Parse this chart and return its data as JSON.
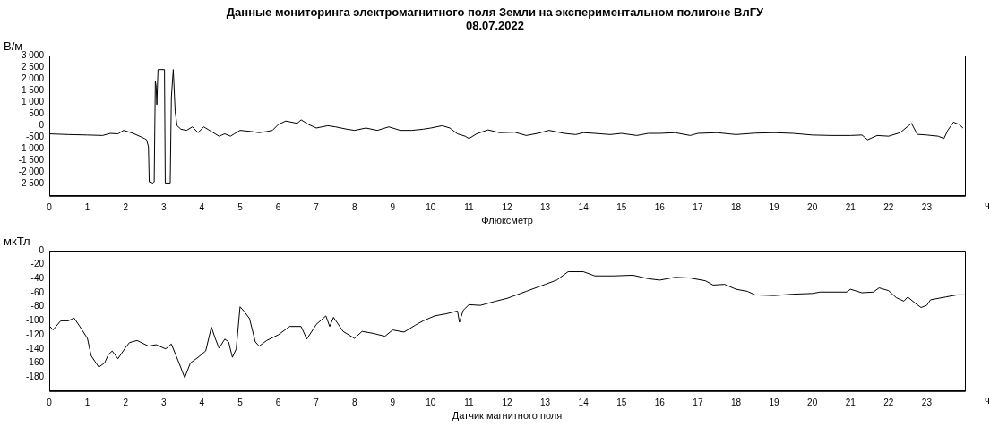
{
  "chart_data": [
    {
      "type": "line",
      "title": "Данные мониторинга электромагнитного поля Земли на экспериментальном полигоне ВлГУ",
      "subtitle": "08.07.2022",
      "ylabel": "В/м",
      "xlabel": "Флюксметр",
      "annotations": [
        "ч"
      ],
      "marker": "none",
      "xlim": [
        0,
        24
      ],
      "xticks": [
        0,
        1,
        2,
        3,
        4,
        5,
        6,
        7,
        8,
        9,
        10,
        11,
        12,
        13,
        14,
        15,
        16,
        17,
        18,
        19,
        20,
        21,
        22,
        23
      ],
      "ylim": [
        -3000,
        3000
      ],
      "yticks": [
        {
          "value": 3000,
          "label": "3 000"
        },
        {
          "value": 2500,
          "label": "2 500"
        },
        {
          "value": 2000,
          "label": "2 000"
        },
        {
          "value": 1500,
          "label": "1 500"
        },
        {
          "value": 1000,
          "label": "1 000"
        },
        500,
        0,
        -500,
        {
          "value": -1000,
          "label": "-1 000"
        },
        {
          "value": -1500,
          "label": "-1 500"
        },
        {
          "value": -2000,
          "label": "-2 000"
        },
        {
          "value": -2500,
          "label": "-2 500"
        }
      ],
      "series": [
        {
          "color": "#000000",
          "x": [
            0,
            0.5,
            1,
            1.4,
            1.6,
            1.8,
            1.95,
            2.2,
            2.5,
            2.55,
            2.6,
            2.62,
            2.72,
            2.75,
            2.78,
            2.8,
            2.82,
            2.85,
            3.02,
            3.04,
            3.17,
            3.2,
            3.25,
            3.3,
            3.35,
            3.45,
            3.6,
            3.75,
            3.9,
            4.05,
            4.2,
            4.45,
            4.6,
            4.75,
            4.85,
            5,
            5.3,
            5.5,
            5.7,
            5.85,
            6,
            6.2,
            6.5,
            6.6,
            6.8,
            7,
            7.3,
            7.5,
            7.8,
            8,
            8.3,
            8.6,
            8.9,
            9.2,
            9.5,
            9.8,
            10,
            10.3,
            10.5,
            10.7,
            10.9,
            11,
            11.2,
            11.5,
            11.8,
            12.2,
            12.5,
            12.8,
            13.1,
            13.5,
            13.8,
            14,
            14.3,
            14.7,
            15,
            15.4,
            15.7,
            16,
            16.4,
            16.8,
            17,
            17.5,
            18,
            18.5,
            19,
            19.5,
            20,
            20.5,
            21,
            21.3,
            21.45,
            21.7,
            22,
            22.3,
            22.6,
            22.75,
            23,
            23.3,
            23.45,
            23.55,
            23.7,
            23.85,
            23.95
          ],
          "values": [
            -350,
            -380,
            -400,
            -420,
            -330,
            -350,
            -200,
            -330,
            -550,
            -600,
            -900,
            -2400,
            -2450,
            -2400,
            1900,
            1700,
            900,
            2400,
            2400,
            -2450,
            -2450,
            1200,
            2400,
            600,
            0,
            -150,
            -200,
            -50,
            -300,
            -50,
            -200,
            -450,
            -350,
            -450,
            -350,
            -200,
            -250,
            -300,
            -250,
            -200,
            50,
            200,
            100,
            250,
            50,
            -100,
            0,
            -50,
            -150,
            -200,
            -100,
            -200,
            -50,
            -200,
            -200,
            -150,
            -100,
            0,
            -100,
            -350,
            -450,
            -550,
            -350,
            -180,
            -300,
            -280,
            -420,
            -330,
            -200,
            -330,
            -380,
            -300,
            -330,
            -380,
            -330,
            -420,
            -330,
            -330,
            -300,
            -420,
            -330,
            -300,
            -380,
            -320,
            -300,
            -330,
            -400,
            -420,
            -420,
            -400,
            -600,
            -420,
            -450,
            -300,
            100,
            -370,
            -400,
            -450,
            -550,
            -200,
            150,
            50,
            -100
          ]
        }
      ]
    },
    {
      "type": "line",
      "ylabel": "мкТл",
      "xlabel": "Датчик магнитного поля",
      "annotations": [
        "ч"
      ],
      "marker": "none",
      "xlim": [
        0,
        24
      ],
      "xticks": [
        0,
        1,
        2,
        3,
        4,
        5,
        6,
        7,
        8,
        9,
        10,
        11,
        12,
        13,
        14,
        15,
        16,
        17,
        18,
        19,
        20,
        21,
        22,
        23
      ],
      "ylim": [
        -200,
        0
      ],
      "yticks": [
        0,
        -20,
        -40,
        -60,
        -80,
        -100,
        -120,
        -140,
        -160,
        -180
      ],
      "series": [
        {
          "color": "#000000",
          "x": [
            0,
            0.1,
            0.3,
            0.5,
            0.65,
            0.8,
            1,
            1.1,
            1.3,
            1.45,
            1.55,
            1.65,
            1.8,
            2,
            2.1,
            2.3,
            2.6,
            2.8,
            3.05,
            3.2,
            3.4,
            3.55,
            3.7,
            3.9,
            4.1,
            4.25,
            4.35,
            4.45,
            4.6,
            4.7,
            4.8,
            4.9,
            5,
            5.1,
            5.25,
            5.4,
            5.5,
            5.7,
            6,
            6.3,
            6.6,
            6.75,
            7,
            7.25,
            7.35,
            7.45,
            7.7,
            8,
            8.2,
            8.5,
            8.8,
            9,
            9.3,
            9.6,
            9.8,
            10.1,
            10.4,
            10.7,
            10.75,
            10.85,
            11,
            11.3,
            11.5,
            11.7,
            12,
            12.5,
            13,
            13.3,
            13.6,
            14,
            14.3,
            14.8,
            15.3,
            15.7,
            16,
            16.4,
            16.8,
            17.2,
            17.4,
            17.7,
            18,
            18.3,
            18.5,
            19,
            19.5,
            20,
            20.2,
            20.9,
            21,
            21.3,
            21.6,
            21.75,
            22,
            22.2,
            22.4,
            22.5,
            22.7,
            22.85,
            23,
            23.1,
            23.5,
            23.8,
            24
          ],
          "values": [
            -107,
            -113,
            -100,
            -100,
            -96,
            -108,
            -125,
            -150,
            -166,
            -160,
            -148,
            -143,
            -154,
            -138,
            -131,
            -128,
            -136,
            -134,
            -140,
            -133,
            -160,
            -181,
            -160,
            -152,
            -143,
            -109,
            -125,
            -139,
            -126,
            -130,
            -152,
            -140,
            -80,
            -86,
            -97,
            -130,
            -136,
            -128,
            -120,
            -108,
            -108,
            -126,
            -105,
            -93,
            -108,
            -95,
            -115,
            -125,
            -115,
            -118,
            -122,
            -113,
            -116,
            -106,
            -100,
            -93,
            -90,
            -86,
            -102,
            -85,
            -77,
            -78,
            -75,
            -72,
            -68,
            -58,
            -48,
            -42,
            -30,
            -30,
            -36,
            -36,
            -35,
            -40,
            -42,
            -38,
            -39,
            -43,
            -49,
            -48,
            -55,
            -58,
            -63,
            -64,
            -62,
            -61,
            -59,
            -59,
            -55,
            -60,
            -59,
            -53,
            -57,
            -67,
            -72,
            -66,
            -75,
            -81,
            -78,
            -70,
            -66,
            -63,
            -63
          ]
        }
      ]
    }
  ]
}
